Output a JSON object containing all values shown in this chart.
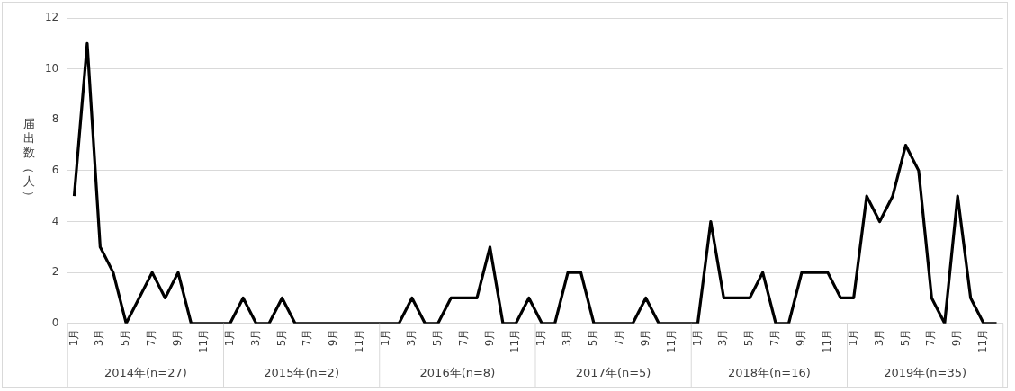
{
  "chart_data": {
    "type": "line",
    "ylabel": "届出数（人）",
    "categories": [
      "1月",
      null,
      "3月",
      null,
      "5月",
      null,
      "7月",
      null,
      "9月",
      null,
      "11月",
      null,
      "1月",
      null,
      "3月",
      null,
      "5月",
      null,
      "7月",
      null,
      "9月",
      null,
      "11月",
      null,
      "1月",
      null,
      "3月",
      null,
      "5月",
      null,
      "7月",
      null,
      "9月",
      null,
      "11月",
      null,
      "1月",
      null,
      "3月",
      null,
      "5月",
      null,
      "7月",
      null,
      "9月",
      null,
      "11月",
      null,
      "1月",
      null,
      "3月",
      null,
      "5月",
      null,
      "7月",
      null,
      "9月",
      null,
      "11月",
      null,
      "1月",
      null,
      "3月",
      null,
      "5月",
      null,
      "7月",
      null,
      "9月",
      null,
      "11月",
      null
    ],
    "series": [
      {
        "color": "#000000",
        "values": [
          5,
          11,
          3,
          2,
          0,
          1,
          2,
          1,
          2,
          0,
          0,
          0,
          0,
          1,
          0,
          0,
          1,
          0,
          0,
          0,
          0,
          0,
          0,
          0,
          0,
          0,
          1,
          0,
          0,
          1,
          1,
          1,
          3,
          0,
          0,
          1,
          0,
          0,
          2,
          2,
          0,
          0,
          0,
          0,
          1,
          0,
          0,
          0,
          0,
          4,
          1,
          1,
          1,
          2,
          0,
          0,
          2,
          2,
          2,
          1,
          1,
          5,
          4,
          5,
          7,
          6,
          1,
          0,
          5,
          1,
          0,
          0
        ]
      }
    ],
    "ylim": [
      0,
      12
    ],
    "yticks": [
      0,
      2,
      4,
      6,
      8,
      10,
      12
    ],
    "grid": "y",
    "legend": false,
    "marker": "none",
    "line_style": "solid",
    "annotations": [
      "2014年(n=27)",
      "2015年(n=2)",
      "2016年(n=8)",
      "2017年(n=5)",
      "2018年(n=16)",
      "2019年(n=35)"
    ]
  }
}
